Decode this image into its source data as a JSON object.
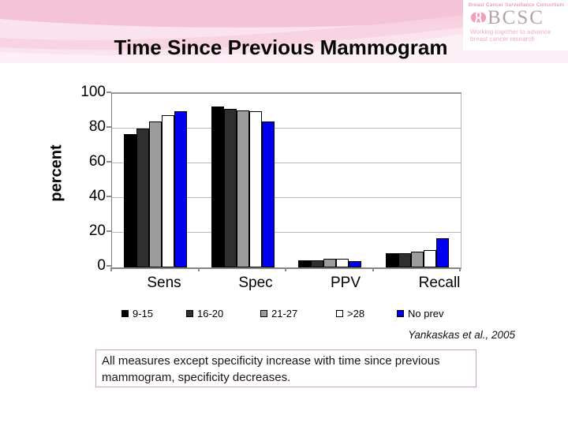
{
  "slide": {
    "title": "Time Since Previous Mammogram",
    "citation": "Yankaskas et al., 2005",
    "note": "All measures except specificity increase with time since previous mammogram, specificity decreases."
  },
  "logo": {
    "org": "Breast Cancer Surveillance Consortium",
    "acronym": "BCSC",
    "tagline_line1": "Working together to advance",
    "tagline_line2": "breast cancer research",
    "colors": {
      "pink": "#e67ba5",
      "acronym_gray": "#b3a2ae"
    }
  },
  "chart_data": {
    "type": "bar",
    "title": "",
    "xlabel": "",
    "ylabel": "percent",
    "ylim": [
      0,
      100
    ],
    "yticks": [
      0,
      20,
      40,
      60,
      80,
      100
    ],
    "grid": true,
    "legend_position": "bottom",
    "categories": [
      "Sens",
      "Spec",
      "PPV",
      "Recall"
    ],
    "series": [
      {
        "name": "9-15",
        "color": "#000000",
        "values": [
          77,
          92.5,
          4.2,
          8.3
        ]
      },
      {
        "name": "16-20",
        "color": "#2f2f2f",
        "values": [
          80,
          91.5,
          4.0,
          8.0
        ]
      },
      {
        "name": "21-27",
        "color": "#9c9c9c",
        "values": [
          84,
          90.5,
          5.0,
          9.0
        ]
      },
      {
        "name": ">28",
        "color": "#ffffff",
        "values": [
          87.5,
          90.0,
          5.0,
          10.0
        ]
      },
      {
        "name": "No prev",
        "color": "#0000ee",
        "values": [
          90,
          84.0,
          3.5,
          16.7
        ]
      }
    ]
  }
}
